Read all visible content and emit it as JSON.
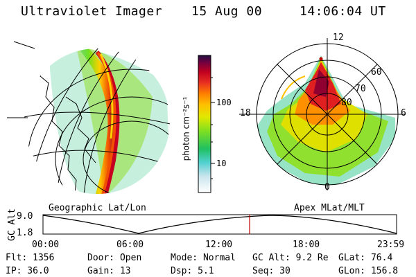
{
  "header": {
    "title": "Ultraviolet Imager",
    "date": "15 Aug 00",
    "time": "14:06:04 UT"
  },
  "left_panel": {
    "caption": "Geographic Lat/Lon"
  },
  "right_panel": {
    "caption": "Apex MLat/MLT",
    "mlt_labels": [
      "12",
      "6",
      "0",
      "18"
    ],
    "mlat_labels": [
      "60",
      "70",
      "80"
    ]
  },
  "colorbar": {
    "label_html": "photon cm⁻²s⁻¹",
    "ticks": [
      "100",
      "10"
    ],
    "colors": [
      "#ffffff",
      "#d0e8ec",
      "#60d8d8",
      "#20c060",
      "#70e020",
      "#d8e800",
      "#ffd000",
      "#ff9000",
      "#f05000",
      "#c80020",
      "#800040",
      "#301050"
    ]
  },
  "altitude_plot": {
    "ylabel": "GC Alt",
    "ytick_top": "9.0",
    "ytick_bottom": "1.8",
    "xticks": [
      "00:00",
      "06:00",
      "12:00",
      "18:00",
      "23:59"
    ],
    "marker_color": "#c00000"
  },
  "status": {
    "flt": "Flt: 1356",
    "ip": "IP: 36.0",
    "door": "Door: Open",
    "gain": "Gain: 13",
    "mode": "Mode: Normal",
    "dsp": "Dsp:    5.1",
    "gcalt": "GC Alt: 9.2 Re",
    "seq": "Seq: 30",
    "glat": "GLat:  76.4",
    "glon": "GLon: 156.8"
  }
}
